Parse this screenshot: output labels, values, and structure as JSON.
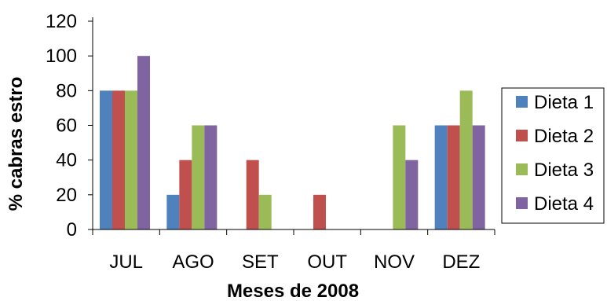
{
  "chart_data": {
    "type": "bar",
    "title": "",
    "xlabel": "Meses de 2008",
    "ylabel": "% cabras estro",
    "categories": [
      "JUL",
      "AGO",
      "SET",
      "OUT",
      "NOV",
      "DEZ"
    ],
    "ylim": [
      0,
      120
    ],
    "yticks": [
      "0",
      "20",
      "40",
      "60",
      "80",
      "100",
      "120"
    ],
    "grid": false,
    "legend_position": "right",
    "series": [
      {
        "name": "Dieta 1",
        "color": "#4F81BD",
        "values": [
          80,
          20,
          0,
          0,
          0,
          60
        ]
      },
      {
        "name": "Dieta 2",
        "color": "#C0504D",
        "values": [
          80,
          40,
          40,
          20,
          0,
          60
        ]
      },
      {
        "name": "Dieta 3",
        "color": "#9BBB59",
        "values": [
          80,
          60,
          20,
          0,
          60,
          80
        ]
      },
      {
        "name": "Dieta 4",
        "color": "#8064A2",
        "values": [
          100,
          60,
          0,
          0,
          40,
          60
        ]
      }
    ]
  }
}
